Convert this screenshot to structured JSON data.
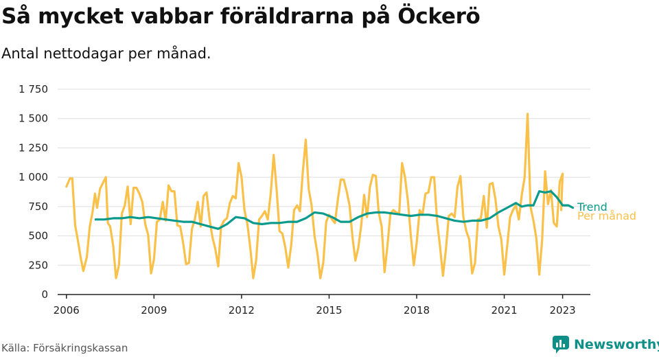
{
  "title": "Så mycket vabbar föräldrarna på Öckerö",
  "subtitle": "Antal nettodagar per månad.",
  "source": "Källa: Försäkringskassan",
  "brand": "Newsworthy",
  "colors": {
    "monthly": "#f9c04a",
    "trend": "#0a9a8c",
    "grid": "#dddddd",
    "axis": "#222222",
    "brand": "#0e8f87"
  },
  "chart_data": {
    "type": "line",
    "ylim": [
      0,
      1750
    ],
    "yticks": [
      0,
      250,
      500,
      750,
      1000,
      1250,
      1500,
      1750
    ],
    "ytick_labels": [
      "0",
      "250",
      "500",
      "750",
      "1 000",
      "1 250",
      "1 500",
      "1 750"
    ],
    "xlim": [
      2005.7,
      2023.95
    ],
    "xticks": [
      2006,
      2009,
      2012,
      2015,
      2018,
      2021,
      2023
    ],
    "xtick_labels": [
      "2006",
      "2009",
      "2012",
      "2015",
      "2018",
      "2021",
      "2023"
    ],
    "grid": true,
    "series": [
      {
        "name": "Per månad",
        "points": [
          [
            2006.0,
            920
          ],
          [
            2006.12,
            990
          ],
          [
            2006.2,
            990
          ],
          [
            2006.3,
            590
          ],
          [
            2006.4,
            450
          ],
          [
            2006.5,
            300
          ],
          [
            2006.58,
            200
          ],
          [
            2006.7,
            320
          ],
          [
            2006.8,
            580
          ],
          [
            2006.9,
            710
          ],
          [
            2006.98,
            860
          ],
          [
            2007.05,
            740
          ],
          [
            2007.15,
            900
          ],
          [
            2007.25,
            950
          ],
          [
            2007.35,
            1000
          ],
          [
            2007.42,
            610
          ],
          [
            2007.5,
            580
          ],
          [
            2007.6,
            420
          ],
          [
            2007.7,
            140
          ],
          [
            2007.8,
            250
          ],
          [
            2007.9,
            690
          ],
          [
            2008.0,
            760
          ],
          [
            2008.1,
            920
          ],
          [
            2008.2,
            600
          ],
          [
            2008.3,
            910
          ],
          [
            2008.4,
            910
          ],
          [
            2008.5,
            860
          ],
          [
            2008.6,
            790
          ],
          [
            2008.7,
            600
          ],
          [
            2008.8,
            510
          ],
          [
            2008.9,
            180
          ],
          [
            2009.0,
            300
          ],
          [
            2009.1,
            620
          ],
          [
            2009.2,
            640
          ],
          [
            2009.3,
            790
          ],
          [
            2009.4,
            630
          ],
          [
            2009.5,
            930
          ],
          [
            2009.6,
            880
          ],
          [
            2009.7,
            880
          ],
          [
            2009.8,
            590
          ],
          [
            2009.9,
            580
          ],
          [
            2010.0,
            440
          ],
          [
            2010.1,
            260
          ],
          [
            2010.2,
            270
          ],
          [
            2010.3,
            560
          ],
          [
            2010.4,
            640
          ],
          [
            2010.5,
            790
          ],
          [
            2010.6,
            580
          ],
          [
            2010.7,
            840
          ],
          [
            2010.8,
            870
          ],
          [
            2010.9,
            650
          ],
          [
            2011.0,
            490
          ],
          [
            2011.1,
            390
          ],
          [
            2011.2,
            240
          ],
          [
            2011.3,
            580
          ],
          [
            2011.4,
            630
          ],
          [
            2011.5,
            650
          ],
          [
            2011.6,
            780
          ],
          [
            2011.7,
            840
          ],
          [
            2011.8,
            820
          ],
          [
            2011.9,
            1120
          ],
          [
            2012.0,
            1000
          ],
          [
            2012.1,
            720
          ],
          [
            2012.2,
            600
          ],
          [
            2012.3,
            400
          ],
          [
            2012.4,
            140
          ],
          [
            2012.5,
            290
          ],
          [
            2012.6,
            640
          ],
          [
            2012.7,
            670
          ],
          [
            2012.8,
            710
          ],
          [
            2012.9,
            640
          ],
          [
            2013.0,
            860
          ],
          [
            2013.1,
            1190
          ],
          [
            2013.2,
            900
          ],
          [
            2013.3,
            540
          ],
          [
            2013.4,
            520
          ],
          [
            2013.5,
            400
          ],
          [
            2013.6,
            230
          ],
          [
            2013.7,
            420
          ],
          [
            2013.8,
            720
          ],
          [
            2013.9,
            760
          ],
          [
            2014.0,
            710
          ],
          [
            2014.1,
            1050
          ],
          [
            2014.2,
            1320
          ],
          [
            2014.3,
            900
          ],
          [
            2014.4,
            760
          ],
          [
            2014.5,
            500
          ],
          [
            2014.6,
            350
          ],
          [
            2014.7,
            140
          ],
          [
            2014.8,
            270
          ],
          [
            2014.9,
            620
          ],
          [
            2015.0,
            680
          ],
          [
            2015.1,
            640
          ],
          [
            2015.2,
            610
          ],
          [
            2015.3,
            810
          ],
          [
            2015.4,
            980
          ],
          [
            2015.5,
            980
          ],
          [
            2015.6,
            880
          ],
          [
            2015.7,
            760
          ],
          [
            2015.8,
            490
          ],
          [
            2015.9,
            290
          ],
          [
            2016.0,
            400
          ],
          [
            2016.1,
            590
          ],
          [
            2016.2,
            850
          ],
          [
            2016.3,
            660
          ],
          [
            2016.4,
            920
          ],
          [
            2016.5,
            1020
          ],
          [
            2016.6,
            1010
          ],
          [
            2016.7,
            700
          ],
          [
            2016.8,
            580
          ],
          [
            2016.9,
            190
          ],
          [
            2017.0,
            420
          ],
          [
            2017.1,
            690
          ],
          [
            2017.2,
            720
          ],
          [
            2017.3,
            700
          ],
          [
            2017.4,
            690
          ],
          [
            2017.5,
            1120
          ],
          [
            2017.6,
            1000
          ],
          [
            2017.7,
            800
          ],
          [
            2017.8,
            500
          ],
          [
            2017.9,
            250
          ],
          [
            2018.0,
            440
          ],
          [
            2018.1,
            720
          ],
          [
            2018.2,
            680
          ],
          [
            2018.3,
            860
          ],
          [
            2018.4,
            870
          ],
          [
            2018.5,
            1000
          ],
          [
            2018.6,
            1000
          ],
          [
            2018.7,
            620
          ],
          [
            2018.8,
            410
          ],
          [
            2018.9,
            160
          ],
          [
            2019.0,
            380
          ],
          [
            2019.1,
            670
          ],
          [
            2019.2,
            690
          ],
          [
            2019.3,
            660
          ],
          [
            2019.4,
            920
          ],
          [
            2019.5,
            1010
          ],
          [
            2019.6,
            660
          ],
          [
            2019.7,
            540
          ],
          [
            2019.8,
            470
          ],
          [
            2019.9,
            180
          ],
          [
            2020.0,
            270
          ],
          [
            2020.1,
            640
          ],
          [
            2020.2,
            650
          ],
          [
            2020.3,
            840
          ],
          [
            2020.4,
            570
          ],
          [
            2020.5,
            940
          ],
          [
            2020.6,
            950
          ],
          [
            2020.7,
            810
          ],
          [
            2020.8,
            580
          ],
          [
            2020.9,
            470
          ],
          [
            2021.0,
            170
          ],
          [
            2021.1,
            410
          ],
          [
            2021.2,
            660
          ],
          [
            2021.3,
            720
          ],
          [
            2021.4,
            760
          ],
          [
            2021.5,
            640
          ],
          [
            2021.6,
            850
          ],
          [
            2021.7,
            1000
          ],
          [
            2021.8,
            1540
          ],
          [
            2021.9,
            750
          ],
          [
            2022.0,
            630
          ],
          [
            2022.1,
            480
          ],
          [
            2022.2,
            170
          ],
          [
            2022.3,
            470
          ],
          [
            2022.4,
            1050
          ],
          [
            2022.5,
            770
          ],
          [
            2022.6,
            890
          ],
          [
            2022.7,
            610
          ],
          [
            2022.8,
            580
          ],
          [
            2022.9,
            960
          ],
          [
            2023.0,
            1030
          ],
          [
            2022.95,
            720
          ]
        ]
      },
      {
        "name": "Trend",
        "points": [
          [
            2007.0,
            640
          ],
          [
            2007.3,
            640
          ],
          [
            2007.6,
            650
          ],
          [
            2007.9,
            650
          ],
          [
            2008.2,
            660
          ],
          [
            2008.5,
            650
          ],
          [
            2008.8,
            660
          ],
          [
            2009.1,
            650
          ],
          [
            2009.4,
            640
          ],
          [
            2009.7,
            630
          ],
          [
            2010.0,
            620
          ],
          [
            2010.3,
            620
          ],
          [
            2010.6,
            600
          ],
          [
            2010.9,
            580
          ],
          [
            2011.2,
            560
          ],
          [
            2011.5,
            600
          ],
          [
            2011.8,
            660
          ],
          [
            2012.1,
            650
          ],
          [
            2012.4,
            610
          ],
          [
            2012.7,
            600
          ],
          [
            2013.0,
            610
          ],
          [
            2013.3,
            610
          ],
          [
            2013.6,
            620
          ],
          [
            2013.9,
            620
          ],
          [
            2014.2,
            650
          ],
          [
            2014.5,
            700
          ],
          [
            2014.8,
            690
          ],
          [
            2015.1,
            660
          ],
          [
            2015.4,
            620
          ],
          [
            2015.7,
            620
          ],
          [
            2016.0,
            660
          ],
          [
            2016.3,
            690
          ],
          [
            2016.6,
            700
          ],
          [
            2016.9,
            700
          ],
          [
            2017.2,
            690
          ],
          [
            2017.5,
            680
          ],
          [
            2017.8,
            670
          ],
          [
            2018.1,
            680
          ],
          [
            2018.4,
            680
          ],
          [
            2018.7,
            670
          ],
          [
            2019.0,
            650
          ],
          [
            2019.3,
            630
          ],
          [
            2019.6,
            620
          ],
          [
            2019.9,
            630
          ],
          [
            2020.2,
            630
          ],
          [
            2020.5,
            650
          ],
          [
            2020.8,
            700
          ],
          [
            2021.1,
            740
          ],
          [
            2021.4,
            780
          ],
          [
            2021.6,
            750
          ],
          [
            2021.8,
            760
          ],
          [
            2022.0,
            760
          ],
          [
            2022.2,
            880
          ],
          [
            2022.4,
            870
          ],
          [
            2022.6,
            880
          ],
          [
            2022.8,
            830
          ],
          [
            2023.0,
            760
          ],
          [
            2023.2,
            760
          ],
          [
            2023.35,
            740
          ]
        ]
      }
    ]
  }
}
